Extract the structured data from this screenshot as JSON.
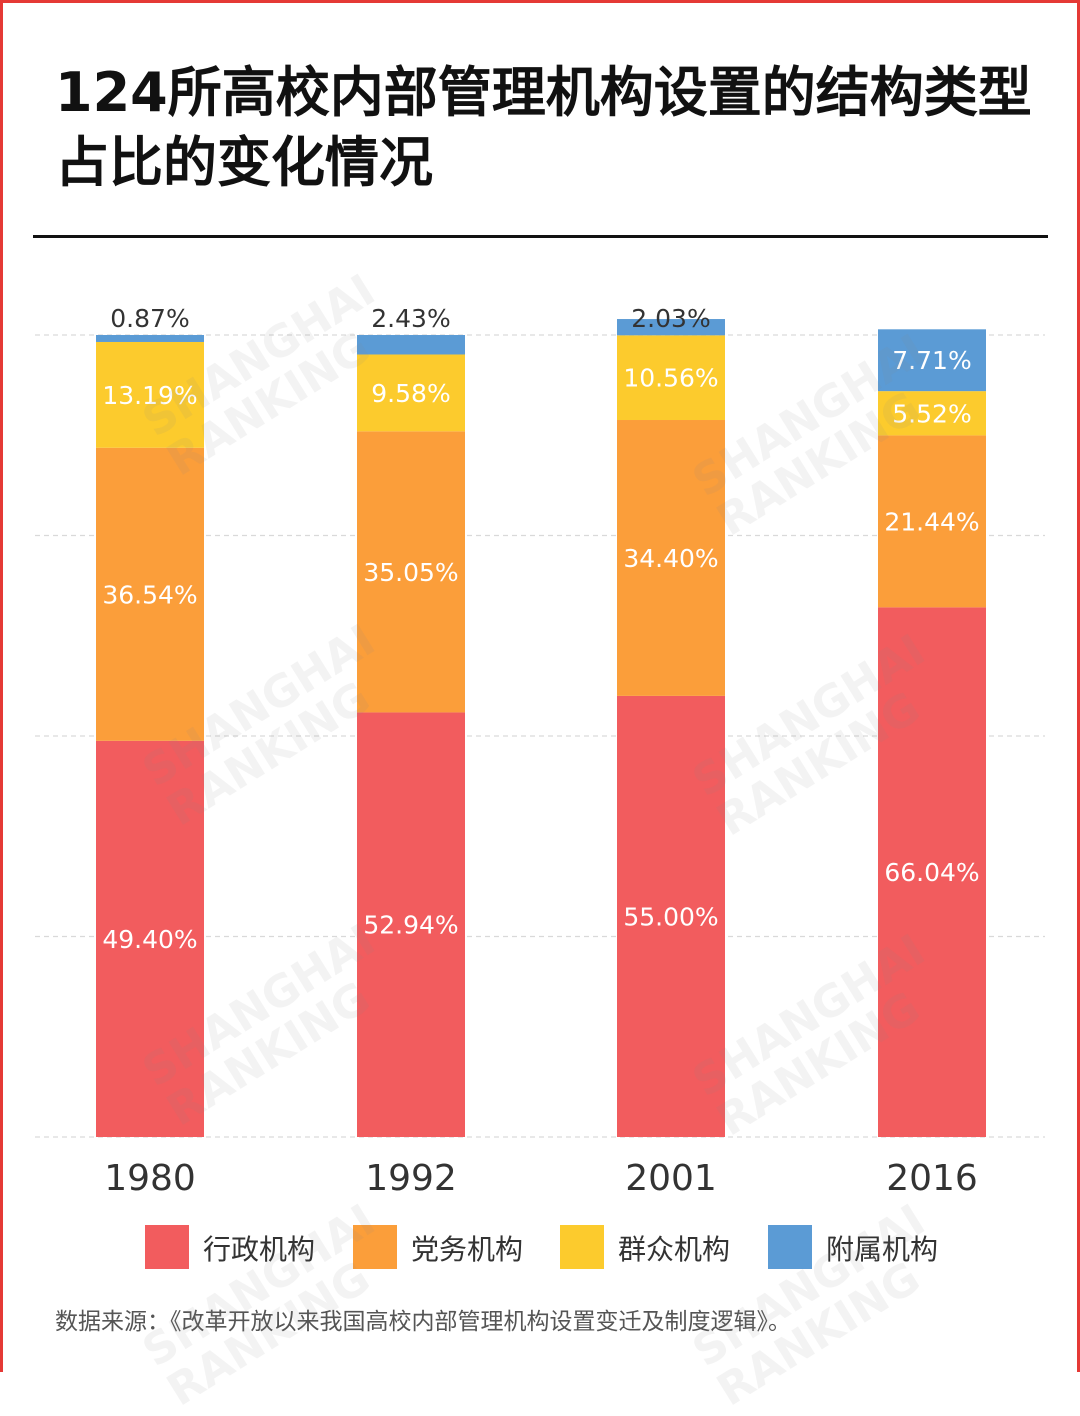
{
  "title": "124所高校内部管理机构设置的结构类型占比的变化情况",
  "colors": {
    "accent": "#e53935",
    "xingzheng": "#f25c5e",
    "dangwu": "#fb9e3a",
    "qunzhong": "#fccb2d",
    "fushu": "#5b9bd5"
  },
  "chart_data": {
    "type": "bar",
    "stacked": true,
    "title": "124所高校内部管理机构设置的结构类型占比的变化情况",
    "categories": [
      "1980",
      "1992",
      "2001",
      "2016"
    ],
    "ylim": [
      0,
      100
    ],
    "grid": true,
    "legend_position": "bottom",
    "series": [
      {
        "name": "行政机构",
        "color": "#f25c5e",
        "values": [
          49.4,
          52.94,
          55.0,
          66.04
        ],
        "labels": [
          "49.40%",
          "52.94%",
          "55.00%",
          "66.04%"
        ]
      },
      {
        "name": "党务机构",
        "color": "#fb9e3a",
        "values": [
          36.54,
          35.05,
          34.4,
          21.44
        ],
        "labels": [
          "36.54%",
          "35.05%",
          "34.40%",
          "21.44%"
        ]
      },
      {
        "name": "群众机构",
        "color": "#fccb2d",
        "values": [
          13.19,
          9.58,
          10.56,
          5.52
        ],
        "labels": [
          "13.19%",
          "9.58%",
          "10.56%",
          "5.52%"
        ]
      },
      {
        "name": "附属机构",
        "color": "#5b9bd5",
        "values": [
          0.87,
          2.43,
          2.03,
          7.71
        ],
        "labels": [
          "0.87%",
          "2.43%",
          "2.03%",
          "7.71%"
        ]
      }
    ]
  },
  "legend": [
    "行政机构",
    "党务机构",
    "群众机构",
    "附属机构"
  ],
  "source": "数据来源：《改革开放以来我国高校内部管理机构设置变迁及制度逻辑》。",
  "watermark": {
    "line1": "SHANGHAI",
    "line2": "RANKING"
  }
}
